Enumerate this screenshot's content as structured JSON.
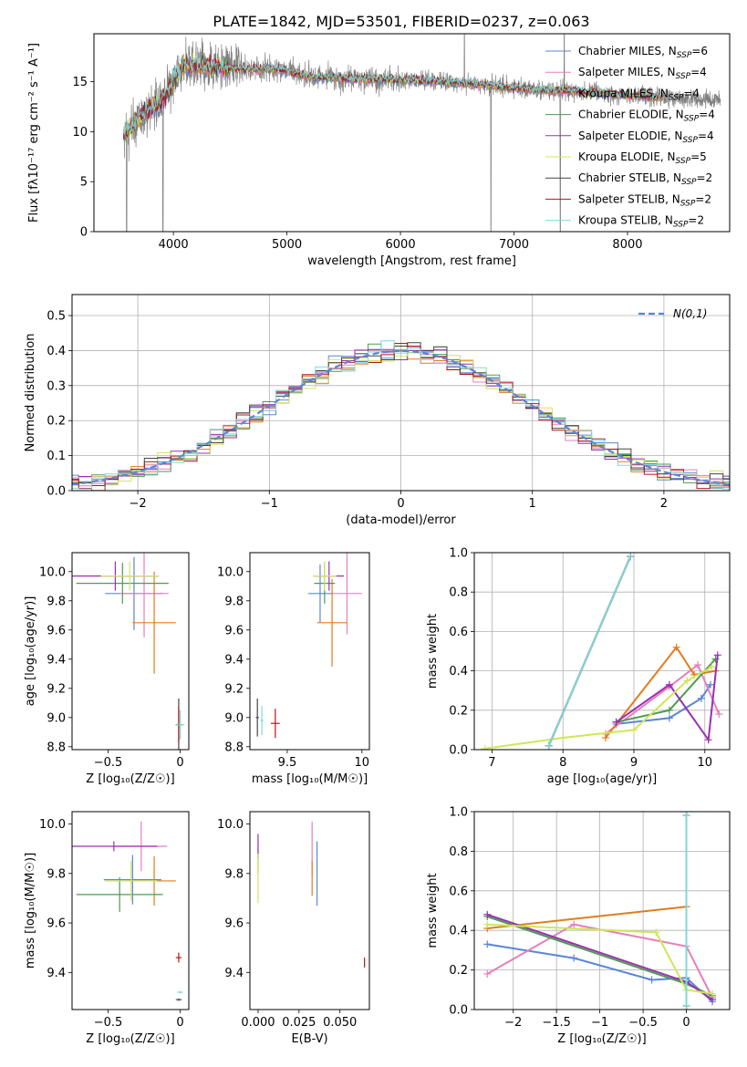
{
  "figure": {
    "title": "PLATE=1842, MJD=53501, FIBERID=0237, z=0.063",
    "models": [
      {
        "name": "Chabrier MILES",
        "nssp": "6",
        "color": "#5b86d6"
      },
      {
        "name": "Salpeter MILES",
        "nssp": "4",
        "color": "#e67fbc"
      },
      {
        "name": "Kroupa MILES",
        "nssp": "4",
        "color": "#e07d1f"
      },
      {
        "name": "Chabrier ELODIE",
        "nssp": "4",
        "color": "#4e9a52"
      },
      {
        "name": "Salpeter ELODIE",
        "nssp": "4",
        "color": "#9b2fb0"
      },
      {
        "name": "Kroupa ELODIE",
        "nssp": "5",
        "color": "#cfe65a"
      },
      {
        "name": "Chabrier STELIB",
        "nssp": "2",
        "color": "#444444"
      },
      {
        "name": "Salpeter STELIB",
        "nssp": "2",
        "color": "#b01818"
      },
      {
        "name": "Kroupa STELIB",
        "nssp": "2",
        "color": "#7fd8d8"
      }
    ]
  },
  "chart_data": [
    {
      "id": "spectrum",
      "type": "line",
      "xlabel": "wavelength [Angstrom, rest frame]",
      "ylabel": "Flux [fλ10⁻¹⁷ erg cm⁻² s⁻¹ A⁻¹]",
      "xlim": [
        3300,
        8900
      ],
      "ylim": [
        0,
        19.8
      ],
      "xticks": [
        4000,
        5000,
        6000,
        7000,
        8000
      ],
      "yticks": [
        0,
        5,
        10,
        15
      ],
      "continuum": {
        "x": [
          3560,
          3700,
          3900,
          4000,
          4100,
          4300,
          4600,
          4900,
          5200,
          5600,
          6000,
          6400,
          6800,
          7200,
          7600,
          8000,
          8400,
          8800
        ],
        "y": [
          9.5,
          11.5,
          13.0,
          15.0,
          16.8,
          16.5,
          16.2,
          16.3,
          15.5,
          15.3,
          15.2,
          15.0,
          14.6,
          14.2,
          14.0,
          13.6,
          13.4,
          13.2
        ]
      },
      "data_range": [
        3560,
        8820
      ],
      "model_range": [
        3560,
        8300
      ],
      "legend": {
        "location": "upper right"
      }
    },
    {
      "id": "residuals",
      "type": "step",
      "xlabel": "(data-model)/error",
      "ylabel": "Normed distribution",
      "xlim": [
        -2.5,
        2.5
      ],
      "ylim": [
        0,
        0.56
      ],
      "xticks": [
        -2,
        -1,
        0,
        1,
        2
      ],
      "yticks": [
        0,
        0.1,
        0.2,
        0.3,
        0.4,
        0.5
      ],
      "grid": true,
      "reference": {
        "name": "N(0,1)",
        "color": "#5b86d6"
      },
      "legend": {
        "location": "upper right"
      }
    },
    {
      "id": "age-vs-Z",
      "type": "errorbar",
      "xlabel": "Z [log₁₀(Z/Z☉)]",
      "ylabel": "age  [log₁₀(age/yr)]",
      "xlim": [
        -0.75,
        0.06
      ],
      "ylim": [
        8.78,
        10.13
      ],
      "xticks": [
        -0.5,
        0.0
      ],
      "yticks": [
        8.8,
        9.0,
        9.2,
        9.4,
        9.6,
        9.8,
        10.0
      ],
      "points": [
        {
          "model": 0,
          "x": -0.32,
          "xerr": 0.2,
          "y": 9.85,
          "yerr": 0.25
        },
        {
          "model": 1,
          "x": -0.25,
          "xerr": 0.17,
          "y": 9.85,
          "yerr": 0.3
        },
        {
          "model": 2,
          "x": -0.18,
          "xerr": 0.15,
          "y": 9.65,
          "yerr": 0.35
        },
        {
          "model": 3,
          "x": -0.4,
          "xerr": 0.32,
          "y": 9.92,
          "yerr": 0.14
        },
        {
          "model": 4,
          "x": -0.45,
          "xerr": 0.3,
          "y": 9.97,
          "yerr": 0.1
        },
        {
          "model": 5,
          "x": -0.35,
          "xerr": 0.2,
          "y": 9.97,
          "yerr": 0.1
        },
        {
          "model": 6,
          "x": -0.01,
          "xerr": 0.02,
          "y": 8.95,
          "yerr": 0.18
        },
        {
          "model": 7,
          "x": -0.01,
          "xerr": 0.02,
          "y": 8.95,
          "yerr": 0.12
        },
        {
          "model": 8,
          "x": 0.0,
          "xerr": 0.03,
          "y": 8.95,
          "yerr": 0.1
        }
      ]
    },
    {
      "id": "age-vs-mass",
      "type": "errorbar",
      "xlabel": "mass [log₁₀(M/M☉)]",
      "xlim": [
        9.25,
        10.05
      ],
      "ylim": [
        8.78,
        10.13
      ],
      "xticks": [
        9.5,
        10.0
      ],
      "yticks": [
        8.8,
        9.0,
        9.2,
        9.4,
        9.6,
        9.8,
        10.0
      ],
      "points": [
        {
          "model": 0,
          "x": 9.72,
          "xerr": 0.08,
          "y": 9.85,
          "yerr": 0.2
        },
        {
          "model": 1,
          "x": 9.9,
          "xerr": 0.1,
          "y": 9.85,
          "yerr": 0.28
        },
        {
          "model": 2,
          "x": 9.8,
          "xerr": 0.1,
          "y": 9.65,
          "yerr": 0.3
        },
        {
          "model": 3,
          "x": 9.75,
          "xerr": 0.07,
          "y": 9.92,
          "yerr": 0.14
        },
        {
          "model": 4,
          "x": 9.78,
          "xerr": 0.1,
          "y": 9.97,
          "yerr": 0.1
        },
        {
          "model": 5,
          "x": 9.75,
          "xerr": 0.08,
          "y": 9.97,
          "yerr": 0.1
        },
        {
          "model": 6,
          "x": 9.3,
          "xerr": 0.01,
          "y": 9.0,
          "yerr": 0.13
        },
        {
          "model": 7,
          "x": 9.42,
          "xerr": 0.03,
          "y": 8.96,
          "yerr": 0.1
        },
        {
          "model": 8,
          "x": 9.33,
          "xerr": 0.01,
          "y": 8.98,
          "yerr": 0.1
        }
      ]
    },
    {
      "id": "weight-vs-age",
      "type": "line",
      "xlabel": "age  [log₁₀(age/yr)]",
      "ylabel": "mass weight",
      "xlim": [
        6.75,
        10.35
      ],
      "ylim": [
        0,
        1.0
      ],
      "xticks": [
        7,
        8,
        9,
        10
      ],
      "yticks": [
        0.0,
        0.2,
        0.4,
        0.6,
        0.8,
        1.0
      ],
      "grid": true,
      "series": [
        {
          "model": 0,
          "x": [
            8.75,
            9.5,
            9.95,
            10.08
          ],
          "y": [
            0.13,
            0.16,
            0.26,
            0.33
          ]
        },
        {
          "model": 1,
          "x": [
            8.6,
            9.5,
            9.9,
            10.2
          ],
          "y": [
            0.08,
            0.32,
            0.43,
            0.18
          ]
        },
        {
          "model": 2,
          "x": [
            8.6,
            9.6,
            9.85,
            10.15
          ],
          "y": [
            0.06,
            0.52,
            0.38,
            0.4
          ]
        },
        {
          "model": 3,
          "x": [
            8.75,
            9.5,
            10.15
          ],
          "y": [
            0.14,
            0.2,
            0.46
          ]
        },
        {
          "model": 4,
          "x": [
            8.75,
            9.5,
            10.05,
            10.18
          ],
          "y": [
            0.14,
            0.33,
            0.05,
            0.48
          ]
        },
        {
          "model": 5,
          "x": [
            6.9,
            8.0,
            9.0,
            9.75,
            10.1
          ],
          "y": [
            0.005,
            0.06,
            0.1,
            0.35,
            0.42
          ]
        },
        {
          "model": 6,
          "x": [
            7.8,
            8.95
          ],
          "y": [
            0.02,
            0.98
          ]
        },
        {
          "model": 7,
          "x": [
            7.8,
            8.95
          ],
          "y": [
            0.02,
            0.98
          ]
        },
        {
          "model": 8,
          "x": [
            7.8,
            8.95
          ],
          "y": [
            0.02,
            0.98
          ]
        }
      ]
    },
    {
      "id": "mass-vs-Z",
      "type": "errorbar",
      "xlabel": "Z [log₁₀(Z/Z☉)]",
      "ylabel": "mass [log₁₀(M/M☉)]",
      "xlim": [
        -0.75,
        0.06
      ],
      "ylim": [
        9.25,
        10.05
      ],
      "xticks": [
        -0.5,
        0.0
      ],
      "yticks": [
        9.4,
        9.6,
        9.8,
        10.0
      ],
      "points": [
        {
          "model": 0,
          "x": -0.33,
          "xerr": 0.2,
          "y": 9.775,
          "yerr": 0.1
        },
        {
          "model": 1,
          "x": -0.27,
          "xerr": 0.18,
          "y": 9.91,
          "yerr": 0.1
        },
        {
          "model": 2,
          "x": -0.18,
          "xerr": 0.15,
          "y": 9.77,
          "yerr": 0.1
        },
        {
          "model": 3,
          "x": -0.42,
          "xerr": 0.3,
          "y": 9.715,
          "yerr": 0.07
        },
        {
          "model": 4,
          "x": -0.46,
          "xerr": 0.3,
          "y": 9.91,
          "yerr": 0.02
        },
        {
          "model": 5,
          "x": -0.34,
          "xerr": 0.18,
          "y": 9.77,
          "yerr": 0.08
        },
        {
          "model": 6,
          "x": -0.01,
          "xerr": 0.02,
          "y": 9.29,
          "yerr": 0.0
        },
        {
          "model": 7,
          "x": -0.01,
          "xerr": 0.02,
          "y": 9.46,
          "yerr": 0.02
        },
        {
          "model": 8,
          "x": 0.0,
          "xerr": 0.02,
          "y": 9.32,
          "yerr": 0.0
        }
      ]
    },
    {
      "id": "mass-vs-ebv",
      "type": "errorbar",
      "xlabel": "E(B-V)",
      "xlim": [
        -0.005,
        0.068
      ],
      "ylim": [
        9.25,
        10.05
      ],
      "xticks": [
        0.0,
        0.025,
        0.05
      ],
      "xticklabels": [
        "0.000",
        "0.025",
        "0.050"
      ],
      "yticks": [
        9.4,
        9.6,
        9.8,
        10.0
      ],
      "points": [
        {
          "model": 0,
          "x": 0.036,
          "y": 9.8,
          "yerr": 0.13
        },
        {
          "model": 1,
          "x": 0.033,
          "y": 9.9,
          "yerr": 0.11
        },
        {
          "model": 2,
          "x": 0.033,
          "y": 9.78,
          "yerr": 0.07
        },
        {
          "model": 3,
          "x": 0.0,
          "y": 9.85,
          "yerr": 0.05
        },
        {
          "model": 4,
          "x": 0.0,
          "y": 9.91,
          "yerr": 0.05
        },
        {
          "model": 5,
          "x": 0.0,
          "y": 9.78,
          "yerr": 0.1
        },
        {
          "model": 7,
          "x": 0.065,
          "y": 9.44,
          "yerr": 0.02
        }
      ]
    },
    {
      "id": "weight-vs-Z",
      "type": "line",
      "xlabel": "Z [log₁₀(Z/Z☉)]",
      "ylabel": "mass weight",
      "xlim": [
        -2.45,
        0.5
      ],
      "ylim": [
        0,
        1.0
      ],
      "xticks": [
        -2.0,
        -1.5,
        -1.0,
        -0.5,
        0.0
      ],
      "yticks": [
        0.0,
        0.2,
        0.4,
        0.6,
        0.8,
        1.0
      ],
      "grid": true,
      "series": [
        {
          "model": 0,
          "x": [
            -2.3,
            -1.3,
            -0.4,
            0.0,
            0.3
          ],
          "y": [
            0.33,
            0.26,
            0.15,
            0.16,
            0.04
          ]
        },
        {
          "model": 1,
          "x": [
            -2.3,
            -1.3,
            0.0,
            0.3
          ],
          "y": [
            0.18,
            0.43,
            0.32,
            0.06
          ]
        },
        {
          "model": 2,
          "x": [
            -2.3,
            0.0
          ],
          "y": [
            0.41,
            0.52
          ]
        },
        {
          "model": 3,
          "x": [
            -2.3,
            0.0,
            0.3
          ],
          "y": [
            0.47,
            0.13,
            0.07
          ]
        },
        {
          "model": 4,
          "x": [
            -2.3,
            0.0,
            0.3
          ],
          "y": [
            0.48,
            0.14,
            0.05
          ]
        },
        {
          "model": 5,
          "x": [
            -2.3,
            -0.35,
            0.0,
            0.3
          ],
          "y": [
            0.43,
            0.39,
            0.1,
            0.08
          ]
        },
        {
          "model": 6,
          "x": [
            0.0,
            0.0
          ],
          "y": [
            0.02,
            0.98
          ]
        },
        {
          "model": 7,
          "x": [
            0.0,
            0.0
          ],
          "y": [
            0.02,
            0.98
          ]
        },
        {
          "model": 8,
          "x": [
            0.0,
            0.0
          ],
          "y": [
            0.02,
            0.98
          ]
        }
      ]
    }
  ]
}
